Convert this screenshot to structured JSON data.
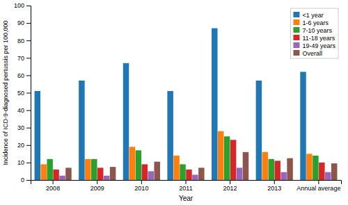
{
  "chart_data": {
    "type": "bar",
    "categories": [
      "2008",
      "2009",
      "2010",
      "2011",
      "2012",
      "2013",
      "Annual average"
    ],
    "series": [
      {
        "name": "<1 year",
        "values": [
          51,
          57,
          67,
          51,
          87,
          57,
          62
        ]
      },
      {
        "name": "1-6 years",
        "values": [
          9,
          12,
          19,
          14,
          28,
          16,
          15
        ]
      },
      {
        "name": "7-10 years",
        "values": [
          12,
          12,
          17,
          9,
          25,
          12,
          14
        ]
      },
      {
        "name": "11-18 years",
        "values": [
          6,
          7,
          9,
          6,
          23,
          11,
          10
        ]
      },
      {
        "name": "19-49 years",
        "values": [
          2.5,
          2.5,
          5,
          3,
          7,
          4.5,
          4.5
        ]
      },
      {
        "name": "Overall",
        "values": [
          7,
          7.5,
          10.5,
          7,
          16,
          12.5,
          9.5
        ]
      }
    ],
    "xlabel": "Year",
    "ylabel": "Incidence of ICD-9-diagnosed pertussis per 100,000",
    "ylim": [
      0,
      100
    ],
    "yticks": [
      0,
      10,
      20,
      30,
      40,
      50,
      60,
      70,
      80,
      90,
      100
    ],
    "grid": false,
    "legend": "upper right"
  }
}
